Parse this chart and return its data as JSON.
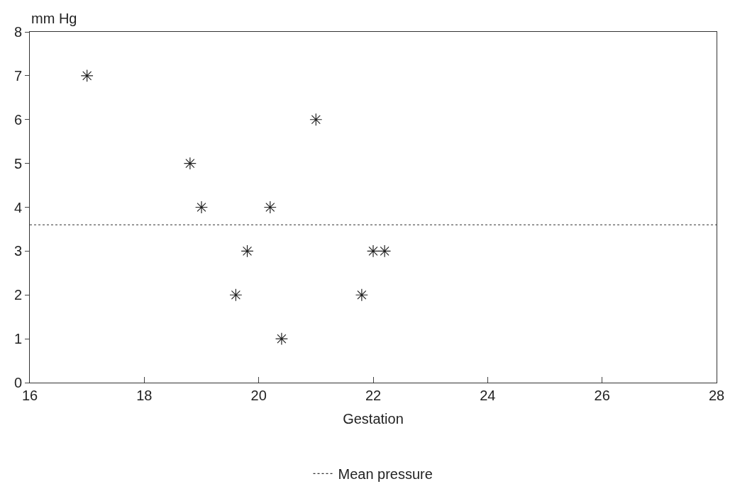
{
  "chart_data": {
    "type": "scatter",
    "xlabel": "Gestation",
    "ylabel": "mm Hg",
    "x": [
      17.0,
      18.8,
      19.0,
      19.6,
      19.8,
      20.2,
      20.4,
      21.0,
      21.8,
      22.0,
      22.2
    ],
    "series": [
      {
        "color": "#222222",
        "values": [
          7,
          5,
          4,
          2,
          3,
          4,
          1,
          6,
          2,
          3,
          3
        ]
      }
    ],
    "xlim": [
      16,
      28
    ],
    "xticks": [
      16,
      18,
      20,
      22,
      24,
      26,
      28
    ],
    "ylim": [
      0,
      8
    ],
    "yticks": [
      0,
      1,
      2,
      3,
      4,
      5,
      6,
      7,
      8
    ],
    "ref_lines": [
      {
        "axis": "y",
        "value": 3.6,
        "label": "Mean pressure",
        "color": "#333333",
        "line_style": "dotted"
      }
    ],
    "marker": "cross",
    "legend": "bottom"
  }
}
